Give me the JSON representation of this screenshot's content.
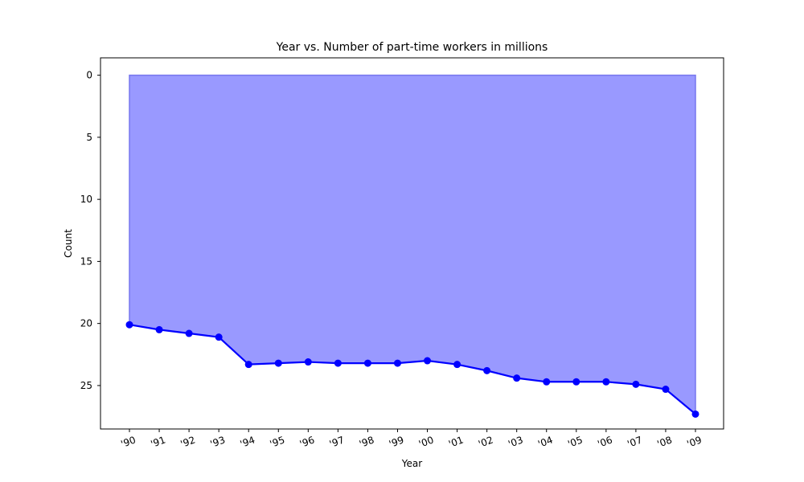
{
  "chart_data": {
    "type": "area",
    "title": "Year vs. Number of part-time workers in millions",
    "xlabel": "Year",
    "ylabel": "Count",
    "categories": [
      "'90",
      "'91",
      "'92",
      "'93",
      "'94",
      "'95",
      "'96",
      "'97",
      "'98",
      "'99",
      "'00",
      "'01",
      "'02",
      "'03",
      "'04",
      "'05",
      "'06",
      "'07",
      "'08",
      "'09"
    ],
    "series": [
      {
        "values": [
          20.1,
          20.5,
          20.8,
          21.1,
          23.3,
          23.2,
          23.1,
          23.2,
          23.2,
          23.2,
          23.0,
          23.3,
          23.8,
          24.4,
          24.7,
          24.7,
          24.7,
          24.9,
          25.3,
          27.3
        ]
      }
    ],
    "ylim": [
      28.5,
      -1.4
    ],
    "y_inverted": true,
    "yticks": [
      0,
      5,
      10,
      15,
      20,
      25
    ],
    "fill_baseline": 0,
    "grid": false,
    "legend": "none",
    "line_color": "#0000ff",
    "fill_color": "#9999ff",
    "fill_edge_color": "#7777ee"
  }
}
